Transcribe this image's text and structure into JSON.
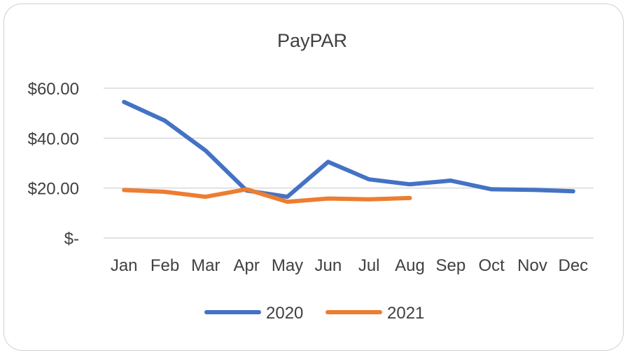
{
  "chart_data": {
    "type": "line",
    "title": "PayPAR",
    "xlabel": "",
    "ylabel": "",
    "categories": [
      "Jan",
      "Feb",
      "Mar",
      "Apr",
      "May",
      "Jun",
      "Jul",
      "Aug",
      "Sep",
      "Oct",
      "Nov",
      "Dec"
    ],
    "ylim": [
      0,
      60
    ],
    "yticks": [
      {
        "value": 0,
        "label": "$-"
      },
      {
        "value": 20,
        "label": "$20.00"
      },
      {
        "value": 40,
        "label": "$40.00"
      },
      {
        "value": 60,
        "label": "$60.00"
      }
    ],
    "grid": true,
    "legend_position": "bottom",
    "series": [
      {
        "name": "2020",
        "color": "#4472C4",
        "values": [
          54.5,
          47,
          35,
          19,
          16.5,
          30.5,
          23.5,
          21.5,
          23,
          19.5,
          19.3,
          18.7
        ]
      },
      {
        "name": "2021",
        "color": "#ED7D31",
        "values": [
          19.2,
          18.5,
          16.5,
          19.5,
          14.5,
          15.8,
          15.5,
          16,
          null,
          null,
          null,
          null
        ]
      }
    ]
  }
}
